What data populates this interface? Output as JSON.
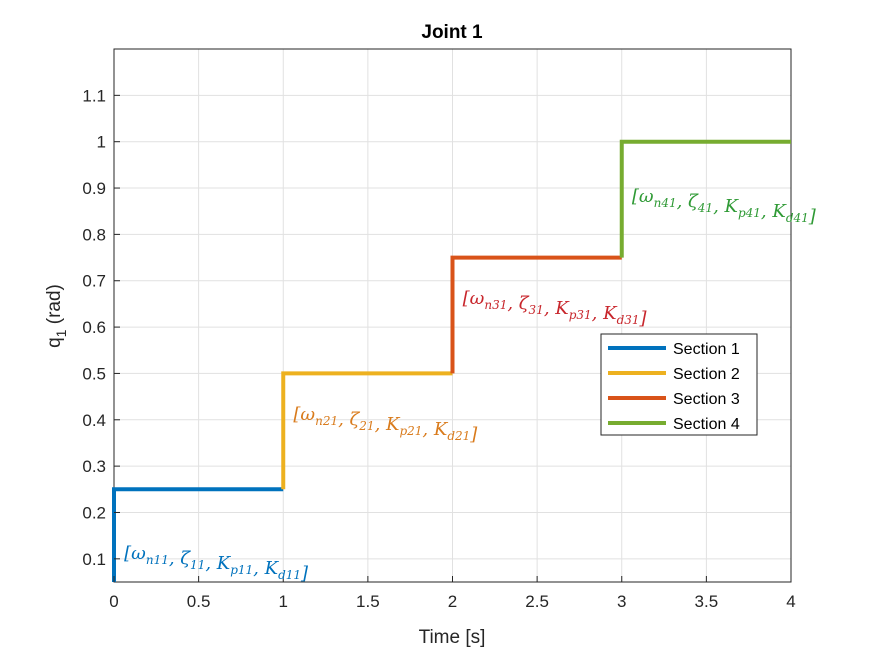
{
  "chart_data": {
    "type": "line",
    "title": "Joint 1",
    "xlabel": "Time [s]",
    "ylabel": "q",
    "ylabel_sub": "1",
    "ylabel_unit": " (rad)",
    "xlim": [
      0,
      4
    ],
    "ylim": [
      0.05,
      1.2
    ],
    "xticks": [
      0,
      0.5,
      1,
      1.5,
      2,
      2.5,
      3,
      3.5,
      4
    ],
    "yticks": [
      0.1,
      0.2,
      0.3,
      0.4,
      0.5,
      0.6,
      0.7,
      0.8,
      0.9,
      1,
      1.1
    ],
    "xtick_labels": [
      "0",
      "0.5",
      "1",
      "1.5",
      "2",
      "2.5",
      "3",
      "3.5",
      "4"
    ],
    "ytick_labels": [
      "0.1",
      "0.2",
      "0.3",
      "0.4",
      "0.5",
      "0.6",
      "0.7",
      "0.8",
      "0.9",
      "1",
      "1.1"
    ],
    "grid": true,
    "legend_position": "center-right",
    "series": [
      {
        "name": "Section 1",
        "color": "#0072BD",
        "x": [
          0,
          0,
          1
        ],
        "y": [
          0.05,
          0.25,
          0.25
        ]
      },
      {
        "name": "Section 2",
        "color": "#EDB120",
        "x": [
          1,
          1,
          2
        ],
        "y": [
          0.25,
          0.5,
          0.5
        ]
      },
      {
        "name": "Section 3",
        "color": "#D95319",
        "x": [
          2,
          2,
          3
        ],
        "y": [
          0.5,
          0.75,
          0.75
        ]
      },
      {
        "name": "Section 4",
        "color": "#77AC30",
        "x": [
          3,
          3,
          4
        ],
        "y": [
          0.75,
          1,
          1
        ]
      }
    ],
    "annotations": [
      {
        "text": "[ω_n11, ζ_11, K_p11, K_d11]",
        "x": 0.06,
        "y": 0.1,
        "color": "#0072BD",
        "parts": [
          [
            "[ω",
            "n11"
          ],
          [
            ", ζ",
            "11"
          ],
          [
            ", K",
            "p11"
          ],
          [
            ", K",
            "d11"
          ],
          [
            "]",
            ""
          ]
        ]
      },
      {
        "text": "[ω_n21, ζ_21, K_p21, K_d21]",
        "x": 1.06,
        "y": 0.4,
        "color": "#D97B1C",
        "parts": [
          [
            "[ω",
            "n21"
          ],
          [
            ", ζ",
            "21"
          ],
          [
            ", K",
            "p21"
          ],
          [
            ", K",
            "d21"
          ],
          [
            "]",
            ""
          ]
        ]
      },
      {
        "text": "[ω_n31, ζ_31, K_p31, K_d31]",
        "x": 2.06,
        "y": 0.65,
        "color": "#C8262C",
        "parts": [
          [
            "[ω",
            "n31"
          ],
          [
            ", ζ",
            "31"
          ],
          [
            ", K",
            "p31"
          ],
          [
            ", K",
            "d31"
          ],
          [
            "]",
            ""
          ]
        ]
      },
      {
        "text": "[ω_n41, ζ_41, K_p41, K_d41]",
        "x": 3.06,
        "y": 0.87,
        "color": "#2F9A35",
        "parts": [
          [
            "[ω",
            "n41"
          ],
          [
            ", ζ",
            "41"
          ],
          [
            ", K",
            "p41"
          ],
          [
            ", K",
            "d41"
          ],
          [
            "]",
            ""
          ]
        ]
      }
    ]
  }
}
